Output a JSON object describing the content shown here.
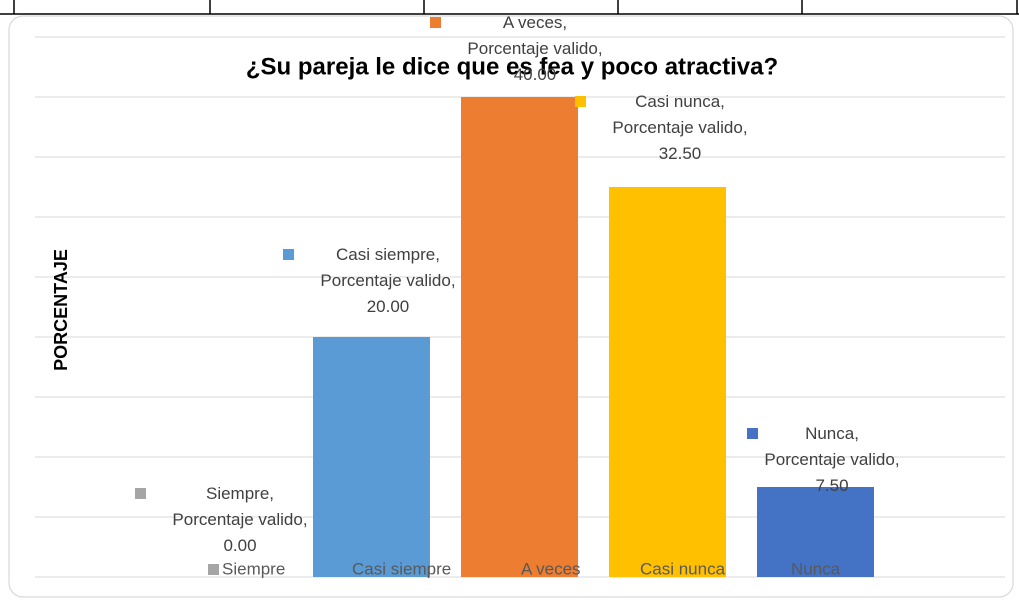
{
  "chart_data": {
    "type": "bar",
    "title": "¿Su pareja le dice que es fea y poco atractiva?",
    "y_label": "PORCENTAJE",
    "series_name": "Porcentaje valido",
    "categories": [
      "Siempre",
      "Casi siempre",
      "A veces",
      "Casi nunca",
      "Nunca"
    ],
    "values": [
      0,
      20,
      40,
      32.5,
      7.5
    ],
    "value_labels": [
      "0.00",
      "20.00",
      "40.00",
      "32.50",
      "7.50"
    ],
    "colors": [
      "#a5a5a5",
      "#5b9bd5",
      "#ed7d31",
      "#ffc000",
      "#4472c4"
    ],
    "ylim": [
      0,
      45
    ],
    "yticks": [
      0,
      5,
      10,
      15,
      20,
      25,
      30,
      35,
      40,
      45
    ],
    "grid": true,
    "legend": "bottom"
  }
}
